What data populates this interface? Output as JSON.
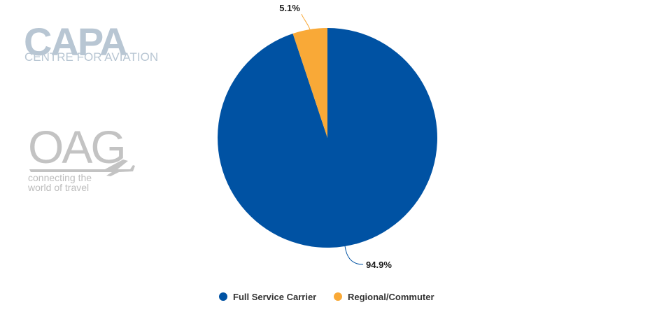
{
  "logos": {
    "capa": {
      "name": "CAPA",
      "tagline": "CENTRE FOR AVIATION"
    },
    "oag": {
      "name": "OAG",
      "tagline_line1": "connecting the",
      "tagline_line2": "world of travel"
    }
  },
  "chart_data": {
    "type": "pie",
    "title": "",
    "slices": [
      {
        "label": "Full Service Carrier",
        "value": 94.9,
        "display": "94.9%",
        "color": "#0052a3"
      },
      {
        "label": "Regional/Commuter",
        "value": 5.1,
        "display": "5.1%",
        "color": "#f9a937"
      }
    ],
    "start_angle": "12 o'clock",
    "direction": "clockwise",
    "legend_position": "bottom-center"
  }
}
